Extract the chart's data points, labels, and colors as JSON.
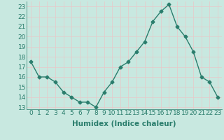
{
  "x": [
    0,
    1,
    2,
    3,
    4,
    5,
    6,
    7,
    8,
    9,
    10,
    11,
    12,
    13,
    14,
    15,
    16,
    17,
    18,
    19,
    20,
    21,
    22,
    23
  ],
  "y": [
    17.5,
    16.0,
    16.0,
    15.5,
    14.5,
    14.0,
    13.5,
    13.5,
    13.0,
    14.5,
    15.5,
    17.0,
    17.5,
    18.5,
    19.5,
    21.5,
    22.5,
    23.2,
    21.0,
    20.0,
    18.5,
    16.0,
    15.5,
    14.0
  ],
  "line_color": "#2a7d6c",
  "marker": "D",
  "marker_size": 2.5,
  "bg_color": "#c8e8e0",
  "grid_color": "#e8c8c8",
  "tick_label_color": "#2a7d6c",
  "xlabel": "Humidex (Indice chaleur)",
  "xlabel_fontsize": 7.5,
  "tick_fontsize": 6.5,
  "ylim": [
    12.8,
    23.5
  ],
  "yticks": [
    13,
    14,
    15,
    16,
    17,
    18,
    19,
    20,
    21,
    22,
    23
  ],
  "xticks": [
    0,
    1,
    2,
    3,
    4,
    5,
    6,
    7,
    8,
    9,
    10,
    11,
    12,
    13,
    14,
    15,
    16,
    17,
    18,
    19,
    20,
    21,
    22,
    23
  ],
  "xlim": [
    -0.5,
    23.5
  ]
}
